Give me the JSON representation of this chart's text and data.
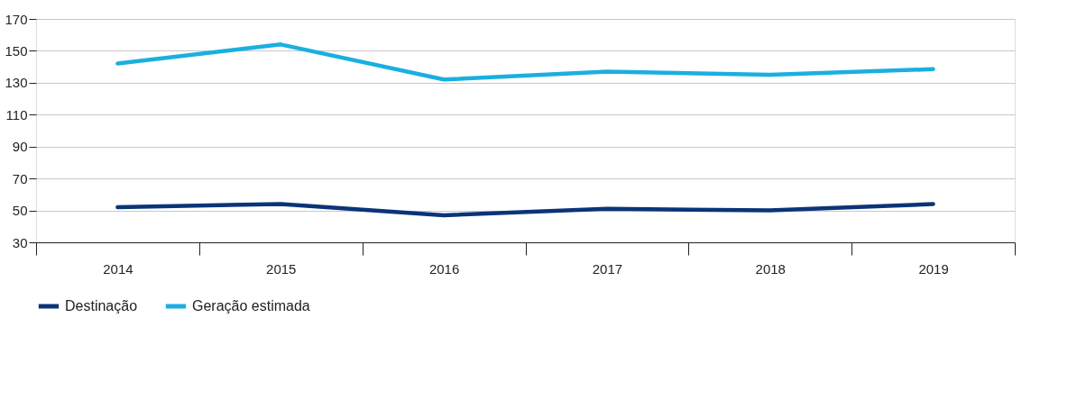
{
  "chart_data": {
    "type": "line",
    "categories": [
      "2014",
      "2015",
      "2016",
      "2017",
      "2018",
      "2019"
    ],
    "series": [
      {
        "name": "Destinação",
        "color": "#0b3478",
        "values": [
          52,
          54,
          47,
          51,
          50,
          54
        ]
      },
      {
        "name": "Geração estimada",
        "color": "#1aafe0",
        "values": [
          142,
          154,
          132,
          137,
          135,
          138.5
        ]
      }
    ],
    "ylim": [
      30,
      170
    ],
    "yticks": [
      30,
      50,
      70,
      90,
      110,
      130,
      150,
      170
    ],
    "grid": "y",
    "legend": "bottom",
    "marker": "none",
    "line_style": "solid"
  }
}
